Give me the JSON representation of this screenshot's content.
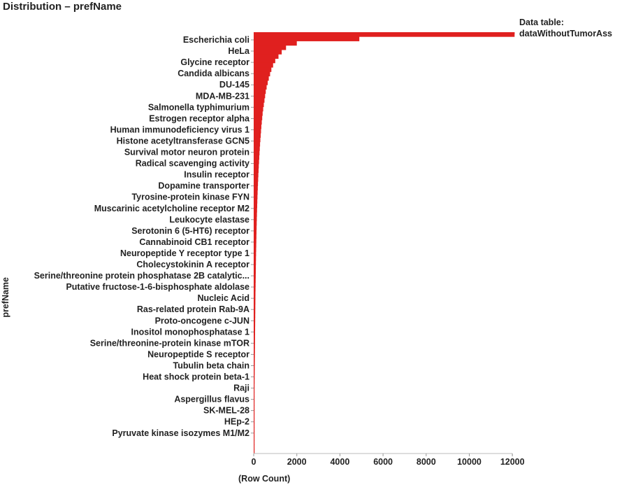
{
  "header": {
    "title": "Distribution – prefName"
  },
  "legend": {
    "line1": "Data table:",
    "line2": "dataWithoutTumorAss"
  },
  "axes": {
    "ylabel": "prefName",
    "xlabel": "(Row Count)"
  },
  "chart_data": {
    "type": "bar",
    "orientation": "horizontal",
    "bar_color": "#e0201f",
    "ylabel": "prefName",
    "xlabel": "(Row Count)",
    "xlim": [
      0,
      12500
    ],
    "xticks": [
      "0",
      "2000",
      "4000",
      "6000",
      "8000",
      "10000",
      "12000"
    ],
    "xtick_values": [
      0,
      2000,
      4000,
      6000,
      8000,
      10000,
      12000
    ],
    "categories_labeled": [
      "Escherichia coli",
      "HeLa",
      "Glycine receptor",
      "Candida albicans",
      "DU-145",
      "MDA-MB-231",
      "Salmonella typhimurium",
      "Estrogen receptor alpha",
      "Human immunodeficiency virus 1",
      "Histone acetyltransferase GCN5",
      "Survival motor neuron protein",
      "Radical scavenging activity",
      "Insulin receptor",
      "Dopamine transporter",
      "Tyrosine-protein kinase FYN",
      "Muscarinic acetylcholine receptor M2",
      "Leukocyte elastase",
      "Serotonin 6 (5-HT6) receptor",
      "Cannabinoid CB1 receptor",
      "Neuropeptide Y receptor type 1",
      "Cholecystokinin A receptor",
      "Serine/threonine protein phosphatase 2B catalytic...",
      "Putative fructose-1-6-bisphosphate aldolase",
      "Nucleic Acid",
      "Ras-related protein Rab-9A",
      "Proto-oncogene c-JUN",
      "Inositol monophosphatase 1",
      "Serine/threonine-protein kinase mTOR",
      "Neuropeptide S receptor",
      "Tubulin beta chain",
      "Heat shock protein beta-1",
      "Raji",
      "Aspergillus flavus",
      "SK-MEL-28",
      "HEp-2",
      "Pyruvate kinase isozymes M1/M2"
    ],
    "labeled_values": [
      12100,
      1700,
      1100,
      900,
      650,
      550,
      480,
      430,
      390,
      360,
      330,
      300,
      280,
      260,
      240,
      225,
      210,
      195,
      185,
      175,
      165,
      155,
      148,
      140,
      133,
      126,
      120,
      114,
      108,
      102,
      97,
      92,
      87,
      82,
      78,
      74
    ],
    "profile_values": [
      12100,
      4900,
      2000,
      1500,
      1300,
      1150,
      1000,
      900,
      820,
      760,
      700,
      650,
      600,
      560,
      530,
      500,
      470,
      440,
      415,
      395,
      375,
      355,
      340,
      325,
      310,
      295,
      282,
      270,
      258,
      247,
      236,
      226,
      216,
      207,
      198,
      190,
      182,
      175,
      168,
      162,
      156,
      150,
      145,
      140,
      135,
      130,
      126,
      122,
      118,
      114,
      110,
      106,
      103,
      100,
      97,
      94,
      91,
      88,
      85,
      82,
      80,
      78,
      76,
      74,
      72,
      70,
      68,
      66,
      64,
      62,
      60,
      58,
      56,
      54,
      52,
      50,
      48,
      46,
      44,
      42,
      40,
      38,
      36,
      34,
      32,
      30,
      28,
      26,
      24,
      22,
      20,
      18,
      16,
      14,
      12,
      10
    ]
  }
}
